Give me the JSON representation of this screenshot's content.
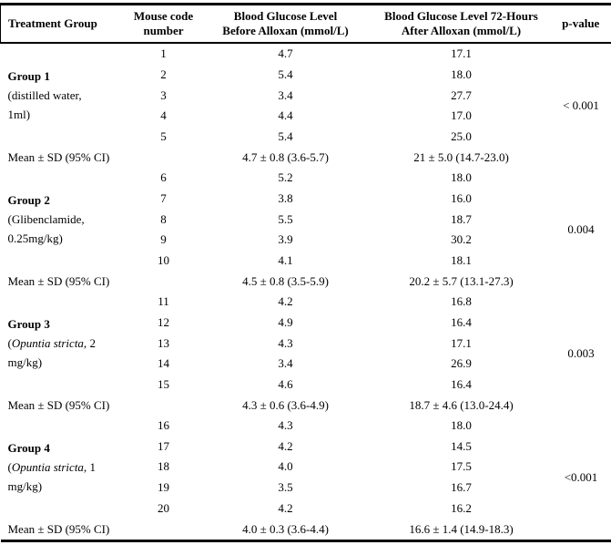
{
  "table": {
    "headers": [
      {
        "label": "Treatment Group"
      },
      {
        "label": "Mouse code\nnumber"
      },
      {
        "label": "Blood Glucose Level\nBefore Alloxan (mmol/L)"
      },
      {
        "label": "Blood Glucose Level 72-Hours\nAfter Alloxan (mmol/L)"
      },
      {
        "label": "p-value"
      }
    ],
    "mean_label": "Mean ± SD (95% CI)",
    "groups": [
      {
        "name": "Group 1",
        "desc": {
          "pre": "(distilled water,\n1ml)",
          "italic": "",
          "post": ""
        },
        "p_value": "< 0.001",
        "mice": [
          {
            "mouse": "1",
            "before": "4.7",
            "after": "17.1"
          },
          {
            "mouse": "2",
            "before": "5.4",
            "after": "18.0"
          },
          {
            "mouse": "3",
            "before": "3.4",
            "after": "27.7"
          },
          {
            "mouse": "4",
            "before": "4.4",
            "after": "17.0"
          },
          {
            "mouse": "5",
            "before": "5.4",
            "after": "25.0"
          }
        ],
        "mean": {
          "before": "4.7 ± 0.8 (3.6-5.7)",
          "after": "21 ± 5.0 (14.7-23.0)"
        }
      },
      {
        "name": "Group 2",
        "desc": {
          "pre": "(Glibenclamide,\n0.25mg/kg)",
          "italic": "",
          "post": ""
        },
        "p_value": "0.004",
        "mice": [
          {
            "mouse": "6",
            "before": "5.2",
            "after": "18.0"
          },
          {
            "mouse": "7",
            "before": "3.8",
            "after": "16.0"
          },
          {
            "mouse": "8",
            "before": "5.5",
            "after": "18.7"
          },
          {
            "mouse": "9",
            "before": "3.9",
            "after": "30.2"
          },
          {
            "mouse": "10",
            "before": "4.1",
            "after": "18.1"
          }
        ],
        "mean": {
          "before": "4.5 ± 0.8 (3.5-5.9)",
          "after": "20.2 ± 5.7 (13.1-27.3)"
        }
      },
      {
        "name": "Group 3",
        "desc": {
          "pre": "(",
          "italic": "Opuntia stricta,",
          "post": " 2\nmg/kg)"
        },
        "p_value": "0.003",
        "mice": [
          {
            "mouse": "11",
            "before": "4.2",
            "after": "16.8"
          },
          {
            "mouse": "12",
            "before": "4.9",
            "after": "16.4"
          },
          {
            "mouse": "13",
            "before": "4.3",
            "after": "17.1"
          },
          {
            "mouse": "14",
            "before": "3.4",
            "after": "26.9"
          },
          {
            "mouse": "15",
            "before": "4.6",
            "after": "16.4"
          }
        ],
        "mean": {
          "before": "4.3 ± 0.6 (3.6-4.9)",
          "after": "18.7 ± 4.6 (13.0-24.4)"
        }
      },
      {
        "name": "Group 4",
        "desc": {
          "pre": "(",
          "italic": "Opuntia stricta,",
          "post": " 1\nmg/kg)"
        },
        "p_value": "<0.001",
        "mice": [
          {
            "mouse": "16",
            "before": "4.3",
            "after": "18.0"
          },
          {
            "mouse": "17",
            "before": "4.2",
            "after": "14.5"
          },
          {
            "mouse": "18",
            "before": "4.0",
            "after": "17.5"
          },
          {
            "mouse": "19",
            "before": "3.5",
            "after": "16.7"
          },
          {
            "mouse": "20",
            "before": "4.2",
            "after": "16.2"
          }
        ],
        "mean": {
          "before": "4.0 ± 0.3 (3.6-4.4)",
          "after": "16.6 ± 1.4 (14.9-18.3)"
        }
      }
    ],
    "colors": {
      "border": "#000000",
      "text": "#000000",
      "background": "#ffffff"
    }
  }
}
